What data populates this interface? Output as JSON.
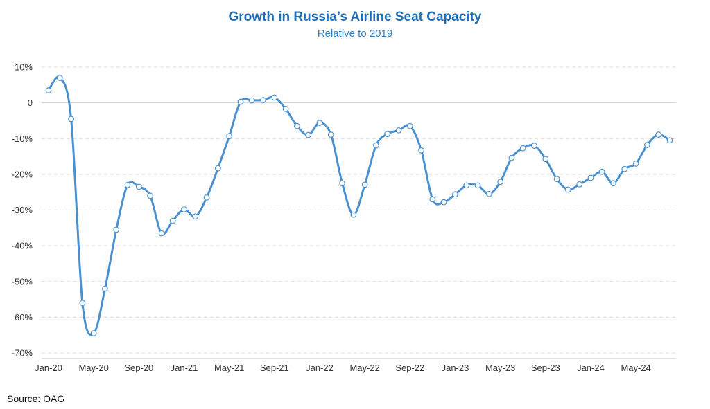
{
  "chart_data": {
    "type": "line",
    "title": "Growth in Russia’s Airline Seat Capacity",
    "subtitle": "Relative to 2019",
    "source": "Source: OAG",
    "xlabel": "",
    "ylabel": "",
    "ylim": [
      -70,
      10
    ],
    "yticks": [
      10,
      0,
      -10,
      -20,
      -30,
      -40,
      -50,
      -60,
      -70
    ],
    "ytick_labels": [
      "10%",
      "0",
      "-10%",
      "-20%",
      "-30%",
      "-40%",
      "-50%",
      "-60%",
      "-70%"
    ],
    "x": [
      "Jan-20",
      "Feb-20",
      "Mar-20",
      "Apr-20",
      "May-20",
      "Jun-20",
      "Jul-20",
      "Aug-20",
      "Sep-20",
      "Oct-20",
      "Nov-20",
      "Dec-20",
      "Jan-21",
      "Feb-21",
      "Mar-21",
      "Apr-21",
      "May-21",
      "Jun-21",
      "Jul-21",
      "Aug-21",
      "Sep-21",
      "Oct-21",
      "Nov-21",
      "Dec-21",
      "Jan-22",
      "Feb-22",
      "Mar-22",
      "Apr-22",
      "May-22",
      "Jun-22",
      "Jul-22",
      "Aug-22",
      "Sep-22",
      "Oct-22",
      "Nov-22",
      "Dec-22",
      "Jan-23",
      "Feb-23",
      "Mar-23",
      "Apr-23",
      "May-23",
      "Jun-23",
      "Jul-23",
      "Aug-23",
      "Sep-23",
      "Oct-23",
      "Nov-23",
      "Dec-23",
      "Jan-24",
      "Feb-24",
      "Mar-24",
      "Apr-24",
      "May-24",
      "Jun-24",
      "Jul-24",
      "Aug-24"
    ],
    "xtick_labels": [
      "Jan-20",
      "May-20",
      "Sep-20",
      "Jan-21",
      "May-21",
      "Sep-21",
      "Jan-22",
      "May-22",
      "Sep-22",
      "Jan-23",
      "May-23",
      "Sep-23",
      "Jan-24",
      "May-24"
    ],
    "grid": "horizontal dashed",
    "legend": "none",
    "series": [
      {
        "color": "#4a90cf",
        "values": [
          3.5,
          7.0,
          -4.5,
          -56.0,
          -64.5,
          -52.0,
          -35.5,
          -23.0,
          -23.5,
          -26.0,
          -36.5,
          -33.0,
          -29.8,
          -31.8,
          -26.5,
          -18.3,
          -9.3,
          0.3,
          0.7,
          0.8,
          1.5,
          -1.7,
          -6.5,
          -9.0,
          -5.6,
          -8.9,
          -22.5,
          -31.3,
          -22.9,
          -11.9,
          -8.7,
          -7.7,
          -6.5,
          -13.3,
          -27.0,
          -27.8,
          -25.6,
          -23.1,
          -23.1,
          -25.5,
          -22.1,
          -15.4,
          -12.7,
          -12.0,
          -15.7,
          -21.3,
          -24.3,
          -22.8,
          -21.0,
          -19.3,
          -22.5,
          -18.5,
          -17.0,
          -11.8,
          -8.9,
          -10.5
        ]
      }
    ]
  }
}
